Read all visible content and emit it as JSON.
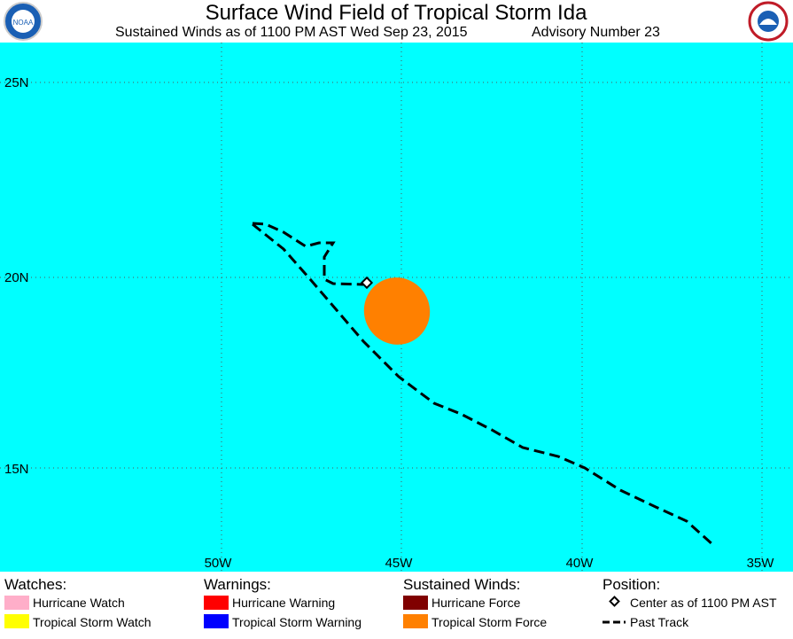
{
  "header": {
    "title": "Surface Wind Field of Tropical Storm Ida",
    "subtitle": "Sustained Winds as of 1100 PM AST Wed Sep 23, 2015",
    "advisory": "Advisory Number 23",
    "logo_left": "NOAA"
  },
  "map": {
    "lat_labels": [
      "25N",
      "20N",
      "15N"
    ],
    "lon_labels": [
      "50W",
      "45W",
      "40W",
      "35W"
    ]
  },
  "legend": {
    "watches": {
      "heading": "Watches:",
      "items": [
        "Hurricane Watch",
        "Tropical Storm Watch"
      ]
    },
    "warnings": {
      "heading": "Warnings:",
      "items": [
        "Hurricane Warning",
        "Tropical Storm Warning"
      ]
    },
    "winds": {
      "heading": "Sustained Winds:",
      "items": [
        "Hurricane Force",
        "Tropical Storm Force"
      ]
    },
    "position": {
      "heading": "Position:",
      "items": [
        "Center as of 1100 PM AST",
        "Past Track"
      ]
    }
  }
}
